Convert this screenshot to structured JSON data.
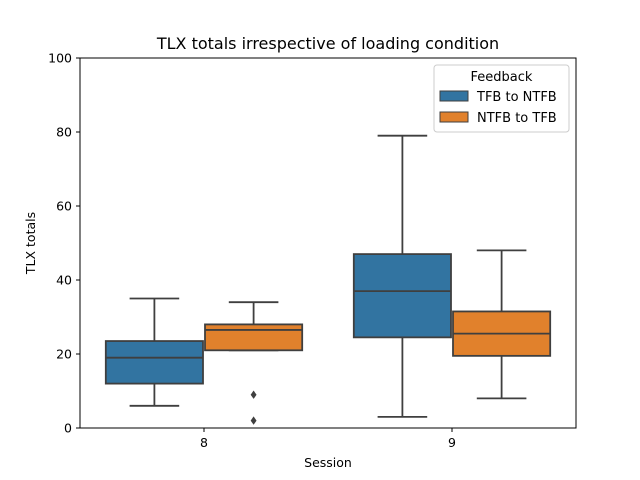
{
  "chart_data": {
    "type": "box",
    "title": "TLX totals irrespective of loading condition",
    "xlabel": "Session",
    "ylabel": "TLX totals",
    "ylim": [
      0,
      100
    ],
    "yticks": [
      0,
      20,
      40,
      60,
      80,
      100
    ],
    "categories": [
      "8",
      "9"
    ],
    "legend": {
      "title": "Feedback",
      "position": "top-right"
    },
    "grid": false,
    "series": [
      {
        "name": "TFB to NTFB",
        "color": "#3274a1",
        "boxes": [
          {
            "whisker_low": 6,
            "q1": 12,
            "median": 19,
            "q3": 23.5,
            "whisker_high": 35,
            "outliers": []
          },
          {
            "whisker_low": 3,
            "q1": 24.5,
            "median": 37,
            "q3": 47,
            "whisker_high": 79,
            "outliers": []
          }
        ]
      },
      {
        "name": "NTFB to TFB",
        "color": "#e1812c",
        "boxes": [
          {
            "whisker_low": 21,
            "q1": 21,
            "median": 26.5,
            "q3": 28,
            "whisker_high": 34,
            "outliers": [
              2,
              9
            ]
          },
          {
            "whisker_low": 8,
            "q1": 19.5,
            "median": 25.5,
            "q3": 31.5,
            "whisker_high": 48,
            "outliers": []
          }
        ]
      }
    ]
  }
}
